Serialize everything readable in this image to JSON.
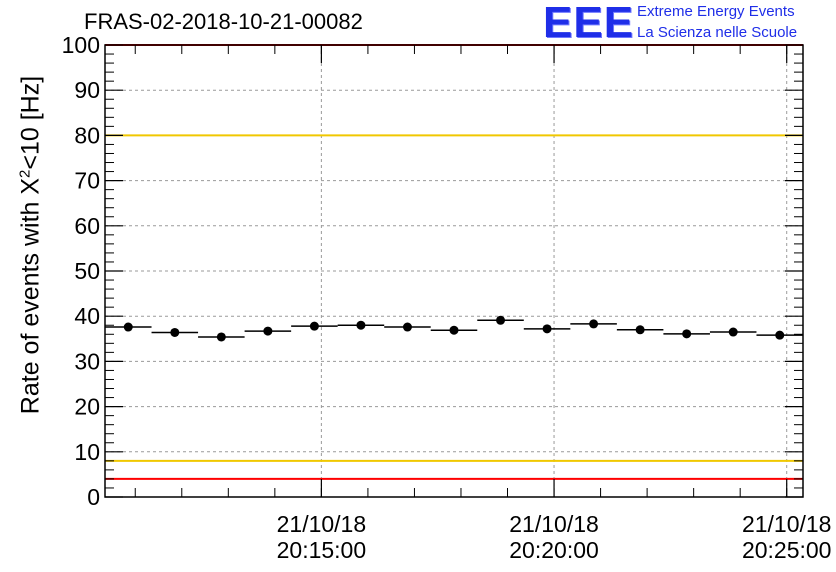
{
  "header": {
    "title": "FRAS-02-2018-10-21-00082",
    "logo_text": "EEE",
    "logo_line1": "Extreme Energy Events",
    "logo_line2": "La Scienza nelle Scuole"
  },
  "chart_data": {
    "type": "scatter",
    "title": "FRAS-02-2018-10-21-00082",
    "xlabel": "",
    "ylabel_prefix": "Rate of events with X",
    "ylabel_sup": "2",
    "ylabel_suffix": "<10 [Hz]",
    "ylim": [
      0,
      100
    ],
    "yticks": [
      0,
      10,
      20,
      30,
      40,
      50,
      60,
      70,
      80,
      90,
      100
    ],
    "grid": true,
    "xticks": [
      {
        "date": "21/10/18",
        "time": "20:15:00",
        "x": 4.65
      },
      {
        "date": "21/10/18",
        "time": "20:20:00",
        "x": 9.65
      },
      {
        "date": "21/10/18",
        "time": "20:25:00",
        "x": 14.65
      }
    ],
    "xlim": [
      0,
      15
    ],
    "reference_lines": [
      {
        "value": 80,
        "color": "#f0c800"
      },
      {
        "value": 8,
        "color": "#f0c800"
      },
      {
        "value": 4,
        "color": "#ff0000"
      },
      {
        "value": 100,
        "color": "#ff0000"
      }
    ],
    "series": [
      {
        "name": "rate",
        "x": [
          0.5,
          1.5,
          2.5,
          3.5,
          4.5,
          5.5,
          6.5,
          7.5,
          8.5,
          9.5,
          10.5,
          11.5,
          12.5,
          13.5,
          14.5
        ],
        "values": [
          37.6,
          36.4,
          35.4,
          36.7,
          37.8,
          38.0,
          37.6,
          36.9,
          39.1,
          37.2,
          38.3,
          37.0,
          36.1,
          36.5,
          35.8
        ]
      }
    ]
  }
}
